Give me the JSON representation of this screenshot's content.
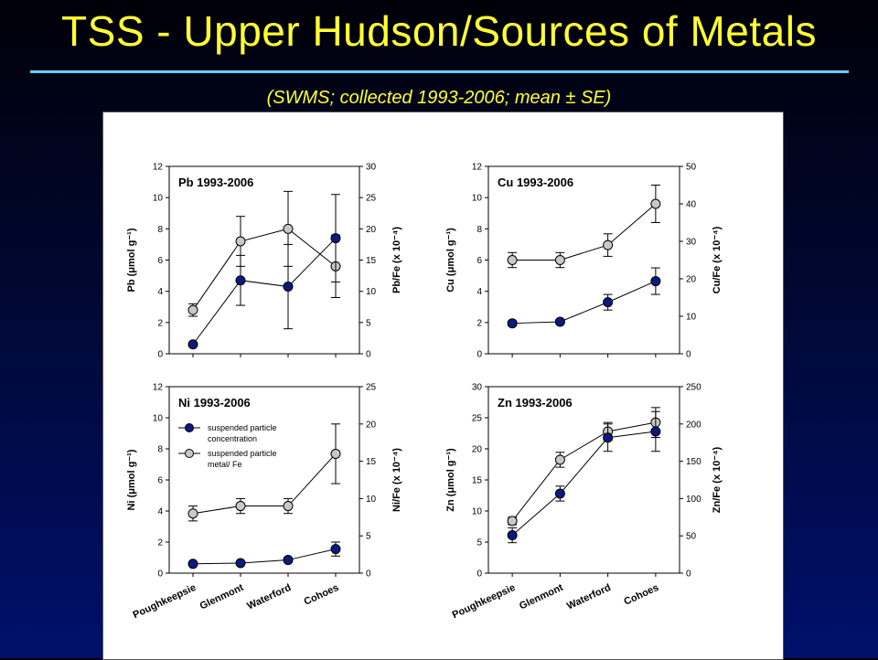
{
  "title": "TSS - Upper Hudson/Sources of Metals",
  "subtitle": "(SWMS; collected 1993-2006; mean ± SE)",
  "colors": {
    "title": "#ffff33",
    "rule": "#66ccff",
    "series_concentration": "#0b1a80",
    "series_ratio": "#c8c8c8"
  },
  "chart_data": [
    {
      "type": "line",
      "panel_title": "Pb 1993-2006",
      "categories": [
        "Poughkeepsie",
        "Glenmont",
        "Waterford",
        "Cohoes"
      ],
      "ylabel_left": "Pb (μmol g⁻¹)",
      "ylabel_right": "Pb/Fe (x 10⁻⁴)",
      "ylim_left": [
        0,
        12
      ],
      "yticks_left": [
        0,
        2,
        4,
        6,
        8,
        10,
        12
      ],
      "ylim_right": [
        0,
        30
      ],
      "yticks_right": [
        0,
        5,
        10,
        15,
        20,
        25,
        30
      ],
      "series": [
        {
          "axis": "left",
          "marker": "dark",
          "values": [
            0.6,
            4.7,
            4.3,
            7.4
          ],
          "err": [
            0.1,
            1.6,
            2.7,
            2.8
          ]
        },
        {
          "axis": "right",
          "marker": "gray",
          "values": [
            7,
            18,
            20,
            14
          ],
          "err": [
            1,
            4,
            6,
            5
          ]
        }
      ]
    },
    {
      "type": "line",
      "panel_title": "Cu 1993-2006",
      "categories": [
        "Poughkeepsie",
        "Glenmont",
        "Waterford",
        "Cohoes"
      ],
      "ylabel_left": "Cu (μmol g⁻¹)",
      "ylabel_right": "Cu/Fe (x 10⁻⁴)",
      "ylim_left": [
        0,
        12
      ],
      "yticks_left": [
        0,
        2,
        4,
        6,
        8,
        10,
        12
      ],
      "ylim_right": [
        0,
        50
      ],
      "yticks_right": [
        0,
        10,
        20,
        30,
        40,
        50
      ],
      "series": [
        {
          "axis": "left",
          "marker": "dark",
          "values": [
            1.95,
            2.05,
            3.3,
            4.65
          ],
          "err": [
            0.15,
            0.15,
            0.5,
            0.85
          ]
        },
        {
          "axis": "right",
          "marker": "gray",
          "values": [
            25,
            25,
            29,
            40
          ],
          "err": [
            2,
            2,
            3,
            5
          ]
        }
      ]
    },
    {
      "type": "line",
      "panel_title": "Ni 1993-2006",
      "categories": [
        "Poughkeepsie",
        "Glenmont",
        "Waterford",
        "Cohoes"
      ],
      "ylabel_left": "Ni (μmol g⁻¹)",
      "ylabel_right": "Ni/Fe (x 10⁻⁴)",
      "ylim_left": [
        0,
        12
      ],
      "yticks_left": [
        0,
        2,
        4,
        6,
        8,
        10,
        12
      ],
      "ylim_right": [
        0,
        25
      ],
      "yticks_right": [
        0,
        5,
        10,
        15,
        20,
        25
      ],
      "legend": [
        {
          "marker": "dark",
          "lines": [
            "suspended particle",
            "concentration"
          ]
        },
        {
          "marker": "gray",
          "lines": [
            "suspended particle",
            "metal/ Fe"
          ]
        }
      ],
      "series": [
        {
          "axis": "left",
          "marker": "dark",
          "values": [
            0.6,
            0.65,
            0.85,
            1.55
          ],
          "err": [
            0.1,
            0.1,
            0.15,
            0.45
          ]
        },
        {
          "axis": "right",
          "marker": "gray",
          "values": [
            8,
            9,
            9,
            16
          ],
          "err": [
            1,
            1,
            1,
            4
          ]
        }
      ]
    },
    {
      "type": "line",
      "panel_title": "Zn 1993-2006",
      "categories": [
        "Poughkeepsie",
        "Glenmont",
        "Waterford",
        "Cohoes"
      ],
      "ylabel_left": "Zn (μmol g⁻¹)",
      "ylabel_right": "Zn/Fe (x 10⁻⁴)",
      "ylim_left": [
        0,
        30
      ],
      "yticks_left": [
        0,
        5,
        10,
        15,
        20,
        25,
        30
      ],
      "ylim_right": [
        0,
        250
      ],
      "yticks_right": [
        0,
        50,
        100,
        150,
        200,
        250
      ],
      "series": [
        {
          "axis": "left",
          "marker": "dark",
          "values": [
            6.1,
            12.8,
            21.8,
            22.8
          ],
          "err": [
            1.2,
            1.2,
            2.2,
            3.2
          ]
        },
        {
          "axis": "right",
          "marker": "gray",
          "values": [
            70,
            152,
            190,
            202
          ],
          "err": [
            5,
            10,
            12,
            20
          ]
        }
      ]
    }
  ]
}
